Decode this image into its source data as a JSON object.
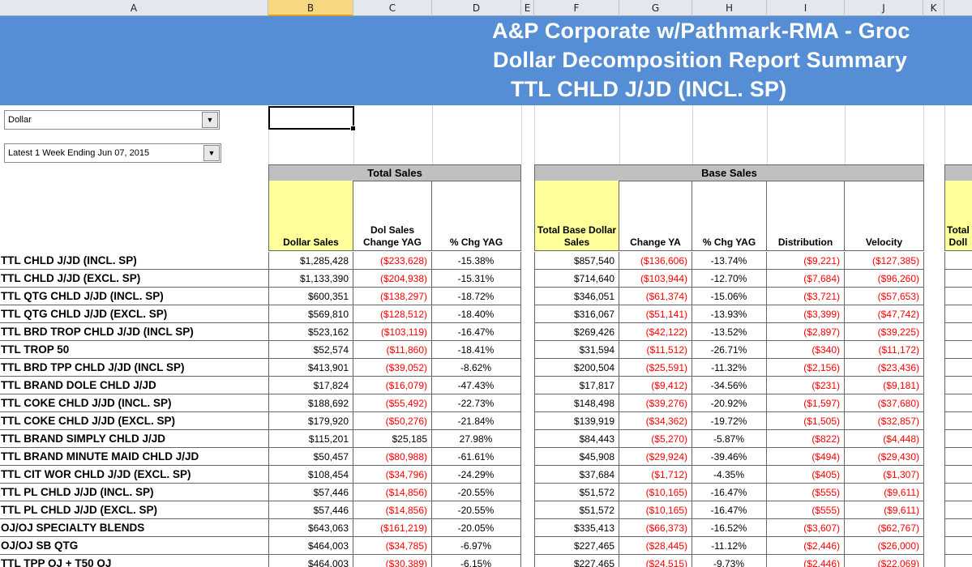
{
  "columns": [
    "A",
    "B",
    "C",
    "D",
    "E",
    "F",
    "G",
    "H",
    "I",
    "J",
    "K"
  ],
  "banner": {
    "line1": "A&P Corporate w/Pathmark-RMA - Groc",
    "line2": "Dollar Decomposition Report Summary",
    "line3": "TTL CHLD J/JD (INCL. SP)"
  },
  "filters": {
    "measure": "Dollar",
    "period": "Latest 1 Week Ending Jun 07, 2015"
  },
  "groups": {
    "total_sales": "Total Sales",
    "base_sales": "Base Sales",
    "partial_third_line1": "Total",
    "partial_third_line2": "Doll"
  },
  "headers": {
    "dollar_sales": "Dollar Sales",
    "dol_sales_change_line1": "Dol Sales",
    "dol_sales_change_line2": "Change YAG",
    "pct_chg_yag": "% Chg YAG",
    "total_base_line1": "Total Base Dollar",
    "total_base_line2": "Sales",
    "change_ya": "Change YA",
    "pct_chg_yag_2": "% Chg YAG",
    "distribution": "Distribution",
    "velocity": "Velocity"
  },
  "rows": [
    {
      "label": "TTL CHLD J/JD (INCL. SP)",
      "b": "$1,285,428",
      "c": "($233,628)",
      "d": "-15.38%",
      "f": "$857,540",
      "g": "($136,606)",
      "h": "-13.74%",
      "i": "($9,221)",
      "j": "($127,385)"
    },
    {
      "label": "TTL CHLD J/JD (EXCL. SP)",
      "b": "$1,133,390",
      "c": "($204,938)",
      "d": "-15.31%",
      "f": "$714,640",
      "g": "($103,944)",
      "h": "-12.70%",
      "i": "($7,684)",
      "j": "($96,260)"
    },
    {
      "label": "TTL QTG CHLD J/JD (INCL. SP)",
      "b": "$600,351",
      "c": "($138,297)",
      "d": "-18.72%",
      "f": "$346,051",
      "g": "($61,374)",
      "h": "-15.06%",
      "i": "($3,721)",
      "j": "($57,653)"
    },
    {
      "label": "TTL QTG CHLD J/JD (EXCL. SP)",
      "b": "$569,810",
      "c": "($128,512)",
      "d": "-18.40%",
      "f": "$316,067",
      "g": "($51,141)",
      "h": "-13.93%",
      "i": "($3,399)",
      "j": "($47,742)"
    },
    {
      "label": "TTL BRD TROP CHLD J/JD (INCL SP)",
      "b": "$523,162",
      "c": "($103,119)",
      "d": "-16.47%",
      "f": "$269,426",
      "g": "($42,122)",
      "h": "-13.52%",
      "i": "($2,897)",
      "j": "($39,225)"
    },
    {
      "label": "TTL TROP 50",
      "b": "$52,574",
      "c": "($11,860)",
      "d": "-18.41%",
      "f": "$31,594",
      "g": "($11,512)",
      "h": "-26.71%",
      "i": "($340)",
      "j": "($11,172)"
    },
    {
      "label": "TTL BRD TPP CHLD J/JD (INCL SP)",
      "b": "$413,901",
      "c": "($39,052)",
      "d": "-8.62%",
      "f": "$200,504",
      "g": "($25,591)",
      "h": "-11.32%",
      "i": "($2,156)",
      "j": "($23,436)"
    },
    {
      "label": "TTL BRAND DOLE CHLD J/JD",
      "b": "$17,824",
      "c": "($16,079)",
      "d": "-47.43%",
      "f": "$17,817",
      "g": "($9,412)",
      "h": "-34.56%",
      "i": "($231)",
      "j": "($9,181)"
    },
    {
      "label": "TTL COKE CHLD J/JD (INCL. SP)",
      "b": "$188,692",
      "c": "($55,492)",
      "d": "-22.73%",
      "f": "$148,498",
      "g": "($39,276)",
      "h": "-20.92%",
      "i": "($1,597)",
      "j": "($37,680)"
    },
    {
      "label": "TTL COKE CHLD J/JD (EXCL. SP)",
      "b": "$179,920",
      "c": "($50,276)",
      "d": "-21.84%",
      "f": "$139,919",
      "g": "($34,362)",
      "h": "-19.72%",
      "i": "($1,505)",
      "j": "($32,857)"
    },
    {
      "label": "TTL BRAND SIMPLY CHLD J/JD",
      "b": "$115,201",
      "c": "$25,185",
      "d": "27.98%",
      "f": "$84,443",
      "g": "($5,270)",
      "h": "-5.87%",
      "i": "($822)",
      "j": "($4,448)"
    },
    {
      "label": "TTL BRAND MINUTE MAID CHLD J/JD",
      "b": "$50,457",
      "c": "($80,988)",
      "d": "-61.61%",
      "f": "$45,908",
      "g": "($29,924)",
      "h": "-39.46%",
      "i": "($494)",
      "j": "($29,430)"
    },
    {
      "label": "TTL CIT WOR CHLD J/JD (EXCL. SP)",
      "b": "$108,454",
      "c": "($34,796)",
      "d": "-24.29%",
      "f": "$37,684",
      "g": "($1,712)",
      "h": "-4.35%",
      "i": "($405)",
      "j": "($1,307)"
    },
    {
      "label": "TTL PL CHLD J/JD (INCL. SP)",
      "b": "$57,446",
      "c": "($14,856)",
      "d": "-20.55%",
      "f": "$51,572",
      "g": "($10,165)",
      "h": "-16.47%",
      "i": "($555)",
      "j": "($9,611)"
    },
    {
      "label": "TTL PL CHLD J/JD (EXCL. SP)",
      "b": "$57,446",
      "c": "($14,856)",
      "d": "-20.55%",
      "f": "$51,572",
      "g": "($10,165)",
      "h": "-16.47%",
      "i": "($555)",
      "j": "($9,611)"
    },
    {
      "label": "OJ/OJ SPECIALTY BLENDS",
      "b": "$643,063",
      "c": "($161,219)",
      "d": "-20.05%",
      "f": "$335,413",
      "g": "($66,373)",
      "h": "-16.52%",
      "i": "($3,607)",
      "j": "($62,767)"
    },
    {
      "label": "OJ/OJ SB QTG",
      "b": "$464,003",
      "c": "($34,785)",
      "d": "-6.97%",
      "f": "$227,465",
      "g": "($28,445)",
      "h": "-11.12%",
      "i": "($2,446)",
      "j": "($26,000)"
    },
    {
      "label": "TTL TPP OJ + T50 OJ",
      "b": "$464,003",
      "c": "($30,389)",
      "d": "-6.15%",
      "f": "$227,465",
      "g": "($24,515)",
      "h": "-9.73%",
      "i": "($2,446)",
      "j": "($22,069)"
    }
  ]
}
